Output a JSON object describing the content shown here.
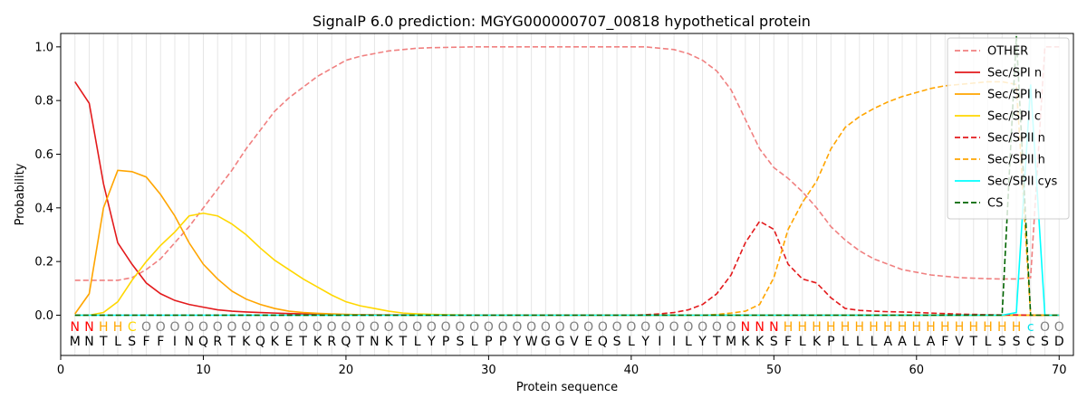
{
  "chart_data": {
    "type": "line",
    "title": "SignalP 6.0 prediction: MGYG000000707_00818 hypothetical protein",
    "xlabel": "Protein sequence",
    "ylabel": "Probability",
    "xlim": [
      0,
      71
    ],
    "ylim": [
      -0.15,
      1.05
    ],
    "xticks": [
      0,
      10,
      20,
      30,
      40,
      50,
      60,
      70
    ],
    "yticks": [
      0.0,
      0.2,
      0.4,
      0.6,
      0.8,
      1.0
    ],
    "xtick_labels": [
      "0",
      "10",
      "20",
      "30",
      "40",
      "50",
      "60",
      "70"
    ],
    "ytick_labels": [
      "0.0",
      "0.2",
      "0.4",
      "0.6",
      "0.8",
      "1.0"
    ],
    "grid": "vertical lines at each residue",
    "legend_position": "top-right",
    "sequence": [
      "M",
      "N",
      "T",
      "L",
      "S",
      "F",
      "F",
      "I",
      "N",
      "Q",
      "R",
      "T",
      "K",
      "Q",
      "K",
      "E",
      "T",
      "K",
      "R",
      "Q",
      "T",
      "N",
      "K",
      "T",
      "L",
      "Y",
      "P",
      "S",
      "L",
      "P",
      "P",
      "Y",
      "W",
      "G",
      "G",
      "V",
      "E",
      "Q",
      "S",
      "L",
      "Y",
      "I",
      "I",
      "L",
      "Y",
      "T",
      "M",
      "K",
      "K",
      "S",
      "F",
      "L",
      "K",
      "P",
      "L",
      "L",
      "L",
      "A",
      "A",
      "L",
      "A",
      "F",
      "V",
      "T",
      "L",
      "S",
      "S",
      "C",
      "S",
      "D"
    ],
    "region_labels": [
      "N",
      "N",
      "H",
      "H",
      "C",
      "O",
      "O",
      "O",
      "O",
      "O",
      "O",
      "O",
      "O",
      "O",
      "O",
      "O",
      "O",
      "O",
      "O",
      "O",
      "O",
      "O",
      "O",
      "O",
      "O",
      "O",
      "O",
      "O",
      "O",
      "O",
      "O",
      "O",
      "O",
      "O",
      "O",
      "O",
      "O",
      "O",
      "O",
      "O",
      "O",
      "O",
      "O",
      "O",
      "O",
      "O",
      "O",
      "N",
      "N",
      "N",
      "H",
      "H",
      "H",
      "H",
      "H",
      "H",
      "H",
      "H",
      "H",
      "H",
      "H",
      "H",
      "H",
      "H",
      "H",
      "H",
      "H",
      "c",
      "O",
      "O"
    ],
    "region_colors": {
      "N": "#ff0000",
      "H": "#ffa500",
      "C": "#ffd700",
      "c": "#00e5ee",
      "O": "#808080"
    },
    "series": [
      {
        "name": "OTHER",
        "color": "#f08080",
        "dash": "dashed",
        "values": [
          0.13,
          0.13,
          0.13,
          0.13,
          0.14,
          0.17,
          0.21,
          0.27,
          0.33,
          0.4,
          0.47,
          0.54,
          0.62,
          0.69,
          0.76,
          0.81,
          0.85,
          0.89,
          0.92,
          0.95,
          0.965,
          0.975,
          0.985,
          0.99,
          0.995,
          0.997,
          0.998,
          0.999,
          1.0,
          1.0,
          1.0,
          1.0,
          1.0,
          1.0,
          1.0,
          1.0,
          1.0,
          1.0,
          1.0,
          1.0,
          1.0,
          0.995,
          0.99,
          0.975,
          0.95,
          0.91,
          0.84,
          0.73,
          0.62,
          0.55,
          0.51,
          0.46,
          0.4,
          0.33,
          0.28,
          0.24,
          0.21,
          0.19,
          0.17,
          0.16,
          0.15,
          0.145,
          0.14,
          0.138,
          0.136,
          0.135,
          0.135,
          0.14,
          1.0,
          1.0
        ]
      },
      {
        "name": "Sec/SPI n",
        "color": "#e31a1c",
        "dash": "solid",
        "values": [
          0.87,
          0.79,
          0.49,
          0.27,
          0.19,
          0.12,
          0.08,
          0.055,
          0.04,
          0.03,
          0.02,
          0.015,
          0.012,
          0.01,
          0.008,
          0.006,
          0.005,
          0.004,
          0.003,
          0.002,
          0.002,
          0.001,
          0.001,
          0.001,
          0.001,
          0,
          0,
          0,
          0,
          0,
          0,
          0,
          0,
          0,
          0,
          0,
          0,
          0,
          0,
          0,
          0,
          0,
          0,
          0,
          0,
          0,
          0,
          0,
          0,
          0,
          0,
          0,
          0,
          0,
          0,
          0,
          0,
          0,
          0,
          0,
          0,
          0,
          0,
          0,
          0,
          0,
          0,
          0,
          0,
          0
        ]
      },
      {
        "name": "Sec/SPI h",
        "color": "#ffa500",
        "dash": "solid",
        "values": [
          0.005,
          0.08,
          0.4,
          0.54,
          0.535,
          0.515,
          0.45,
          0.37,
          0.27,
          0.19,
          0.135,
          0.09,
          0.06,
          0.04,
          0.025,
          0.015,
          0.01,
          0.007,
          0.005,
          0.003,
          0.002,
          0.001,
          0.001,
          0,
          0,
          0,
          0,
          0,
          0,
          0,
          0,
          0,
          0,
          0,
          0,
          0,
          0,
          0,
          0,
          0,
          0,
          0,
          0,
          0,
          0,
          0,
          0,
          0,
          0,
          0,
          0,
          0,
          0,
          0,
          0,
          0,
          0,
          0,
          0,
          0,
          0,
          0,
          0,
          0,
          0,
          0,
          0,
          0,
          0,
          0
        ]
      },
      {
        "name": "Sec/SPI c",
        "color": "#ffd700",
        "dash": "solid",
        "values": [
          0.0,
          0.0,
          0.01,
          0.05,
          0.13,
          0.2,
          0.26,
          0.31,
          0.37,
          0.38,
          0.37,
          0.34,
          0.3,
          0.25,
          0.205,
          0.17,
          0.135,
          0.105,
          0.075,
          0.05,
          0.035,
          0.025,
          0.015,
          0.008,
          0.005,
          0.003,
          0.002,
          0.001,
          0,
          0,
          0,
          0,
          0,
          0,
          0,
          0,
          0,
          0,
          0,
          0,
          0,
          0,
          0,
          0,
          0,
          0,
          0,
          0,
          0,
          0,
          0,
          0,
          0,
          0,
          0,
          0,
          0,
          0,
          0,
          0,
          0,
          0,
          0,
          0,
          0,
          0,
          0,
          0,
          0,
          0
        ]
      },
      {
        "name": "Sec/SPII n",
        "color": "#e31a1c",
        "dash": "dashed",
        "values": [
          0,
          0,
          0,
          0,
          0,
          0,
          0,
          0,
          0,
          0,
          0,
          0,
          0,
          0,
          0,
          0,
          0,
          0,
          0,
          0,
          0,
          0,
          0,
          0,
          0,
          0,
          0,
          0,
          0,
          0,
          0,
          0,
          0,
          0,
          0,
          0,
          0,
          0,
          0,
          0,
          0.002,
          0.005,
          0.01,
          0.02,
          0.04,
          0.08,
          0.15,
          0.27,
          0.35,
          0.32,
          0.19,
          0.135,
          0.12,
          0.065,
          0.025,
          0.018,
          0.015,
          0.013,
          0.012,
          0.01,
          0.008,
          0.006,
          0.004,
          0.003,
          0.002,
          0.001,
          0.001,
          0,
          0,
          0
        ]
      },
      {
        "name": "Sec/SPII h",
        "color": "#ffa500",
        "dash": "dashed",
        "values": [
          0,
          0,
          0,
          0,
          0,
          0,
          0,
          0,
          0,
          0,
          0,
          0,
          0,
          0,
          0,
          0,
          0,
          0,
          0,
          0,
          0,
          0,
          0,
          0,
          0,
          0,
          0,
          0,
          0,
          0,
          0,
          0,
          0,
          0,
          0,
          0,
          0,
          0,
          0,
          0,
          0,
          0,
          0,
          0,
          0,
          0.003,
          0.008,
          0.015,
          0.04,
          0.14,
          0.32,
          0.42,
          0.5,
          0.62,
          0.7,
          0.74,
          0.77,
          0.795,
          0.815,
          0.83,
          0.845,
          0.855,
          0.86,
          0.865,
          0.87,
          0.87,
          0.86,
          0.0,
          0.0,
          0.0
        ]
      },
      {
        "name": "Sec/SPII cys",
        "color": "#00ffff",
        "dash": "solid",
        "values": [
          0,
          0,
          0,
          0,
          0,
          0,
          0,
          0,
          0,
          0,
          0,
          0,
          0,
          0,
          0,
          0,
          0,
          0,
          0,
          0,
          0,
          0,
          0,
          0,
          0,
          0,
          0,
          0,
          0,
          0,
          0,
          0,
          0,
          0,
          0,
          0,
          0,
          0,
          0,
          0,
          0,
          0,
          0,
          0,
          0,
          0,
          0,
          0,
          0,
          0,
          0,
          0,
          0,
          0,
          0,
          0,
          0,
          0,
          0,
          0,
          0,
          0,
          0,
          0,
          0,
          0,
          0.01,
          0.86,
          0.0,
          0.0
        ]
      },
      {
        "name": "CS",
        "color": "#006400",
        "dash": "dashed",
        "values": [
          0,
          0,
          0,
          0,
          0,
          0,
          0,
          0,
          0,
          0,
          0,
          0,
          0,
          0,
          0,
          0,
          0,
          0,
          0,
          0,
          0,
          0,
          0,
          0,
          0,
          0,
          0,
          0,
          0,
          0,
          0,
          0,
          0,
          0,
          0,
          0,
          0,
          0,
          0,
          0,
          0,
          0,
          0,
          0,
          0,
          0,
          0,
          0,
          0,
          0,
          0,
          0,
          0,
          0,
          0,
          0,
          0,
          0,
          0,
          0,
          0,
          0,
          0,
          0,
          0,
          0,
          1.04,
          0.0,
          0.0,
          0.0
        ]
      }
    ]
  }
}
